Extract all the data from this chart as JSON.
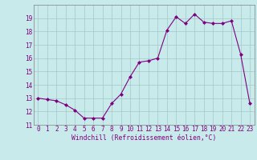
{
  "x": [
    0,
    1,
    2,
    3,
    4,
    5,
    6,
    7,
    8,
    9,
    10,
    11,
    12,
    13,
    14,
    15,
    16,
    17,
    18,
    19,
    20,
    21,
    22,
    23
  ],
  "y": [
    13.0,
    12.9,
    12.8,
    12.5,
    12.1,
    11.5,
    11.5,
    11.5,
    12.6,
    13.3,
    14.6,
    15.7,
    15.8,
    16.0,
    18.1,
    19.1,
    18.6,
    19.3,
    18.7,
    18.6,
    18.6,
    18.8,
    16.3,
    12.6
  ],
  "xlabel": "Windchill (Refroidissement éolien,°C)",
  "ylim": [
    11,
    20
  ],
  "xlim": [
    -0.5,
    23.5
  ],
  "yticks": [
    11,
    12,
    13,
    14,
    15,
    16,
    17,
    18,
    19
  ],
  "xticks": [
    0,
    1,
    2,
    3,
    4,
    5,
    6,
    7,
    8,
    9,
    10,
    11,
    12,
    13,
    14,
    15,
    16,
    17,
    18,
    19,
    20,
    21,
    22,
    23
  ],
  "line_color": "#800080",
  "marker_color": "#800080",
  "bg_color": "#c8eaea",
  "grid_color": "#a0c8c8",
  "font_color": "#800080",
  "tick_fontsize": 5.5,
  "xlabel_fontsize": 5.8
}
